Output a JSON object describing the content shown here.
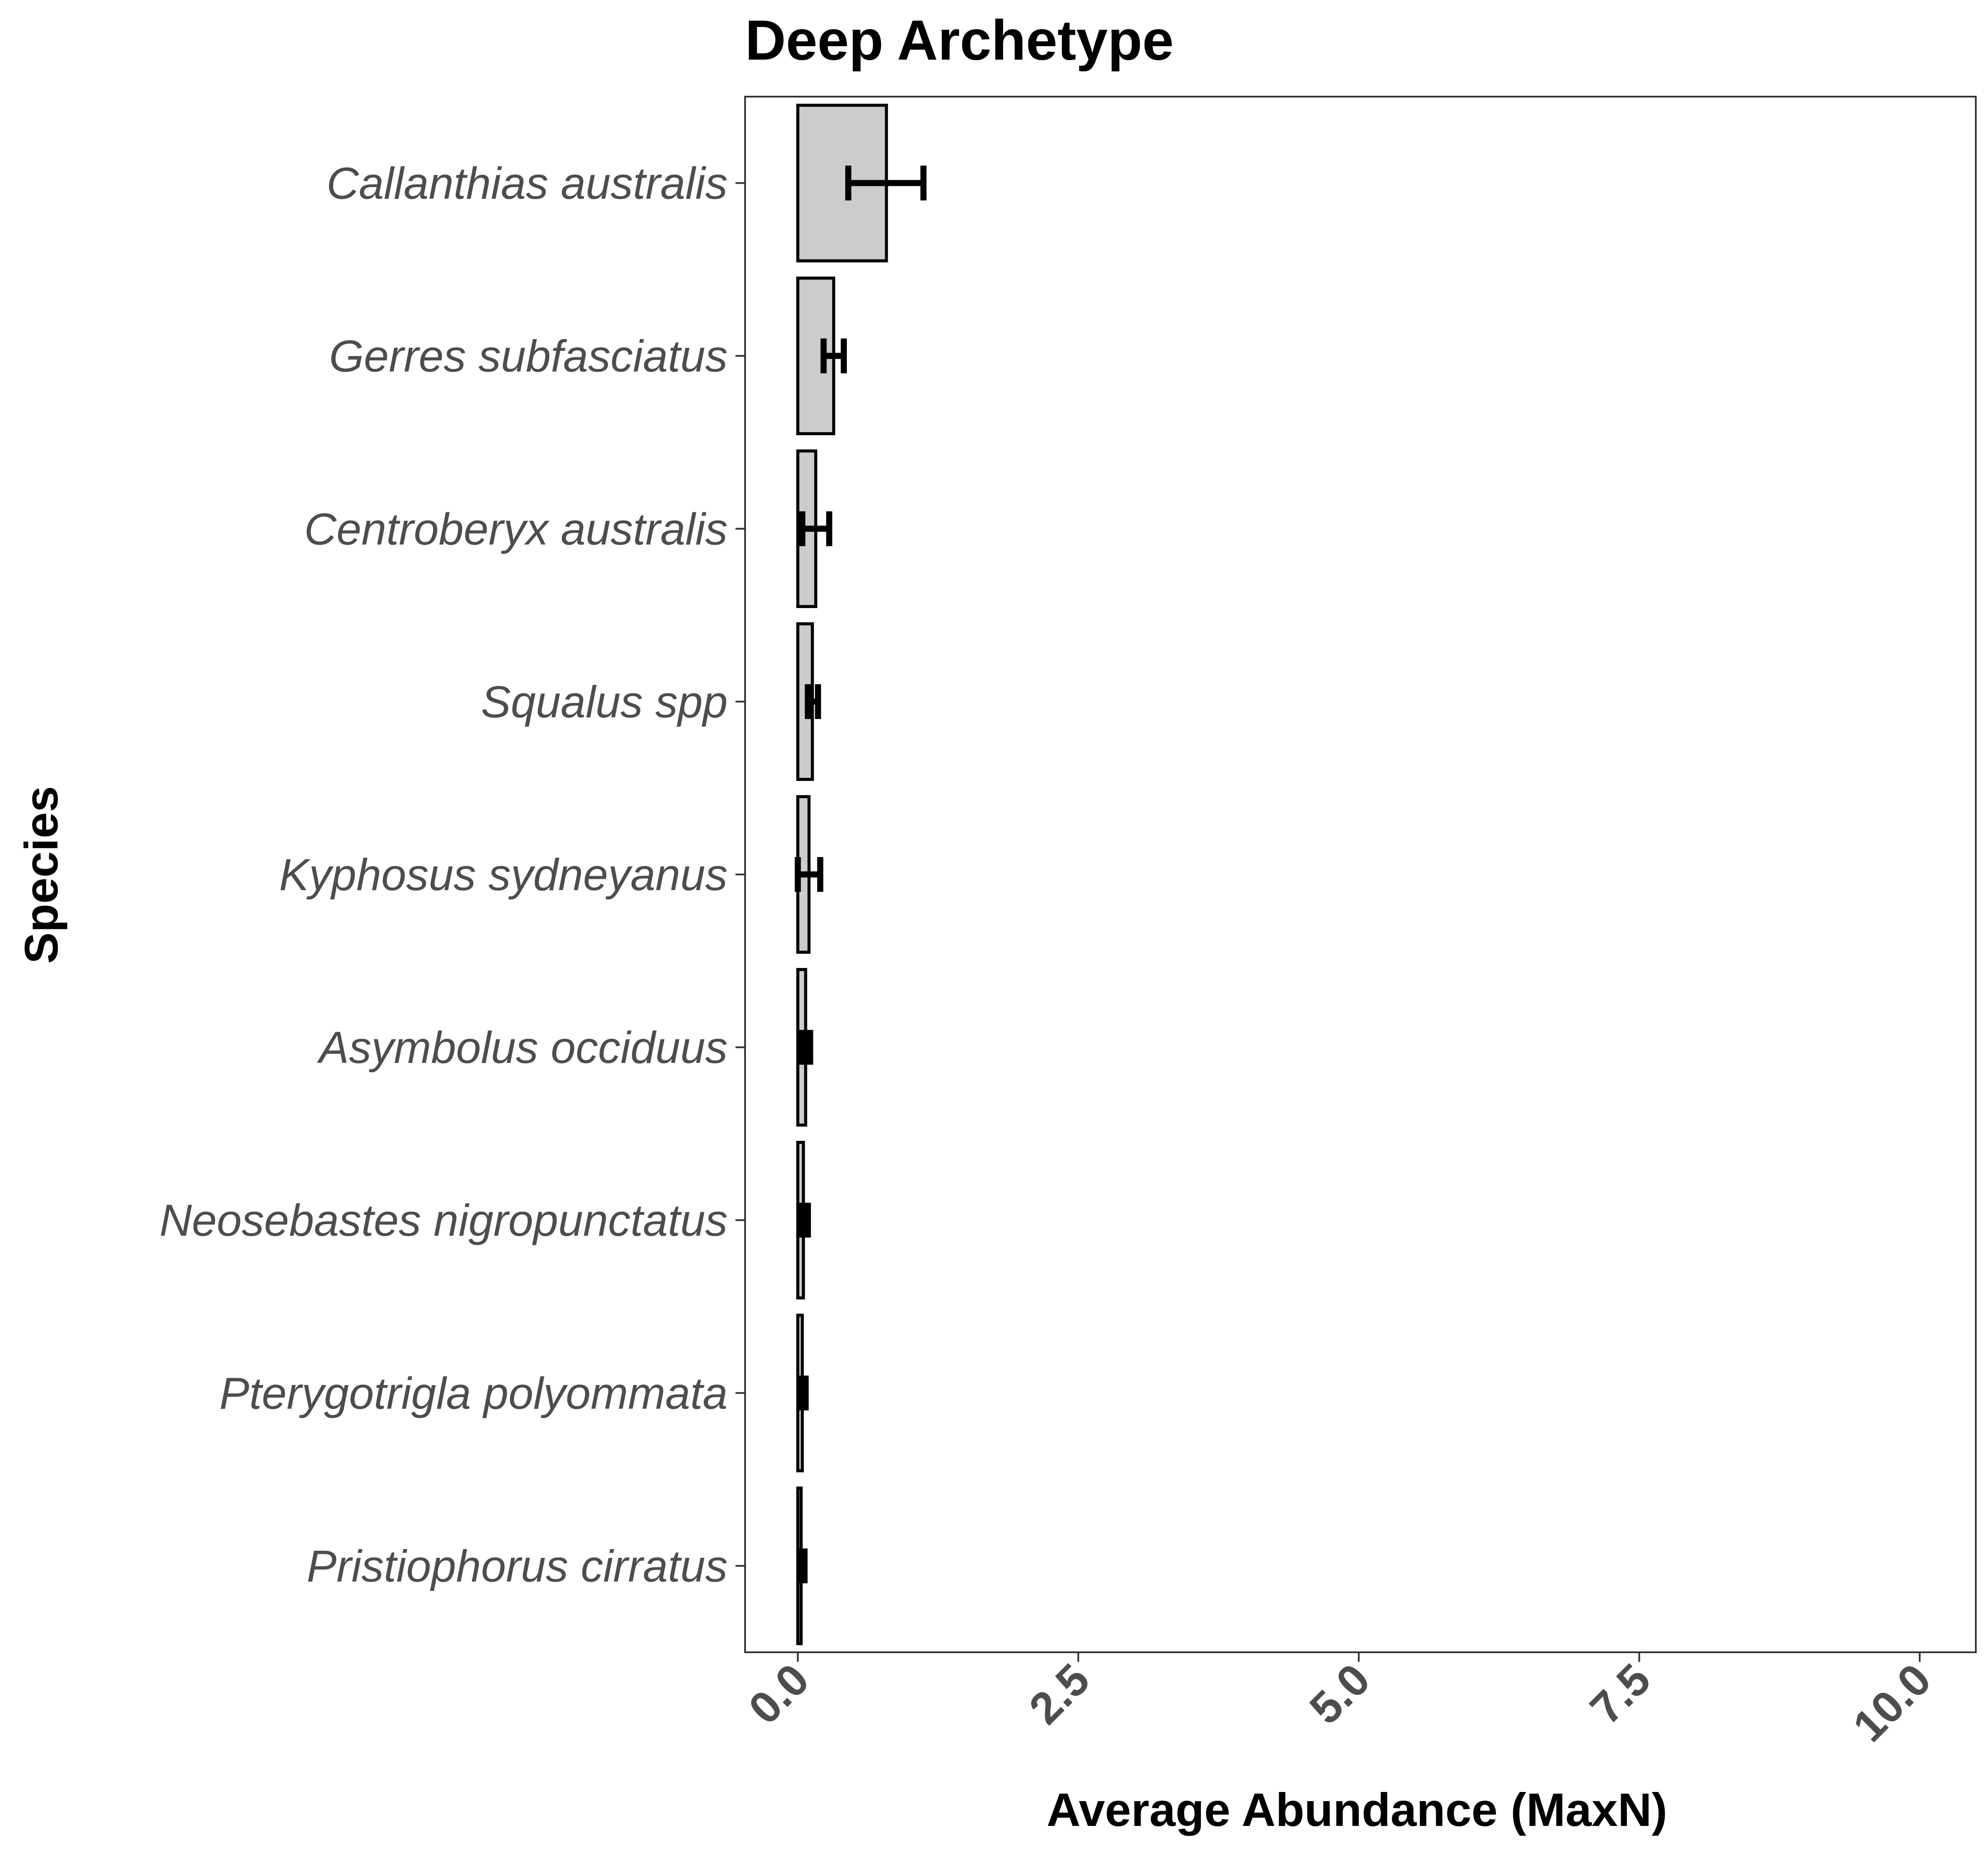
{
  "chart_data": {
    "type": "bar",
    "orientation": "horizontal",
    "title": "Deep Archetype",
    "xlabel": "Average Abundance (MaxN)",
    "ylabel": "Species",
    "xlim": [
      -0.47,
      10.5
    ],
    "xticks": [
      "0.0",
      "2.5",
      "5.0",
      "7.5",
      "10.0"
    ],
    "xtick_values": [
      0,
      2.5,
      5,
      7.5,
      10
    ],
    "grid": false,
    "bar_fill": "#cccccc",
    "bar_stroke": "#000000",
    "categories": [
      "Callanthias australis",
      "Gerres subfasciatus",
      "Centroberyx australis",
      "Squalus spp",
      "Kyphosus sydneyanus",
      "Asymbolus occiduus",
      "Neosebastes nigropunctatus",
      "Pterygotrigla polyommata",
      "Pristiophorus cirratus"
    ],
    "values": [
      0.79,
      0.32,
      0.16,
      0.13,
      0.1,
      0.07,
      0.05,
      0.04,
      0.03
    ],
    "error_low": [
      0.45,
      0.23,
      0.04,
      0.09,
      0.0,
      0.03,
      0.03,
      0.02,
      0.02
    ],
    "error_high": [
      1.12,
      0.41,
      0.28,
      0.18,
      0.2,
      0.11,
      0.09,
      0.07,
      0.06
    ]
  }
}
